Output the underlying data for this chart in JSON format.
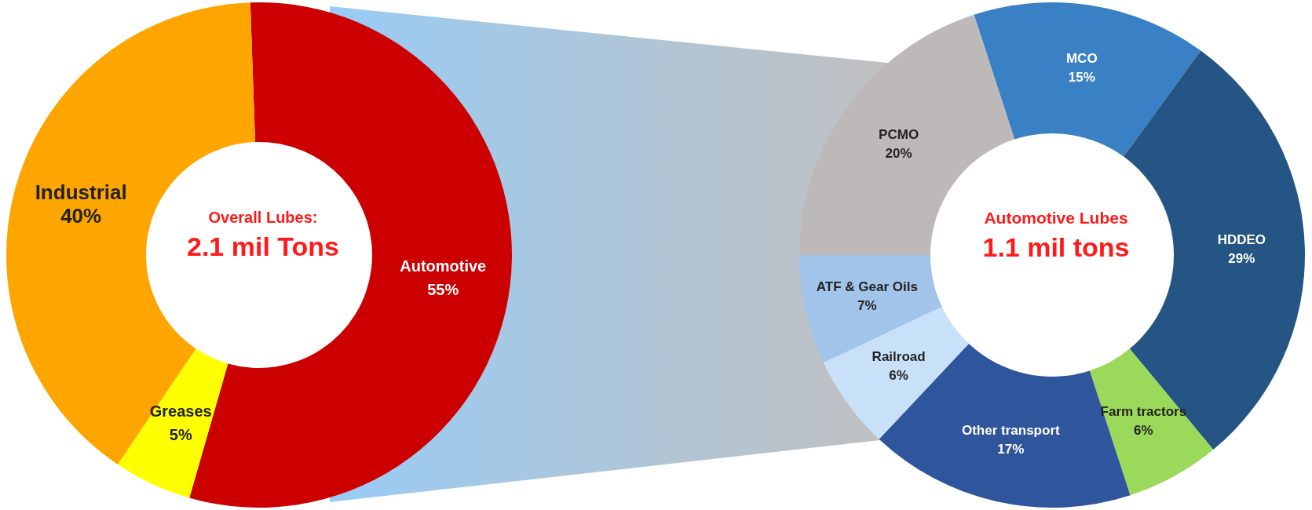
{
  "chart_data": [
    {
      "type": "donut",
      "title": "Overall Lubes:",
      "subtitle": "2.1 mil Tons",
      "categories": [
        "Automotive",
        "Greases",
        "Industrial"
      ],
      "values": [
        55,
        5,
        40
      ],
      "value_labels": [
        "55%",
        "5%",
        "40%"
      ],
      "colors": [
        "#cc0000",
        "#ffff00",
        "#ffa500"
      ]
    },
    {
      "type": "donut",
      "title": "Automotive Lubes",
      "subtitle": "1.1 mil tons",
      "categories": [
        "MCO",
        "HDDEO",
        "Farm tractors",
        "Other transport",
        "Railroad",
        "ATF & Gear Oils",
        "PCMO"
      ],
      "values": [
        15,
        29,
        6,
        17,
        6,
        7,
        20
      ],
      "value_labels": [
        "15%",
        "29%",
        "6%",
        "17%",
        "6%",
        "7%",
        "20%"
      ],
      "colors": [
        "#3a80c4",
        "#255584",
        "#9bd95a",
        "#2f559c",
        "#c9e1f8",
        "#a3c4ea",
        "#bdb9b8"
      ]
    }
  ]
}
